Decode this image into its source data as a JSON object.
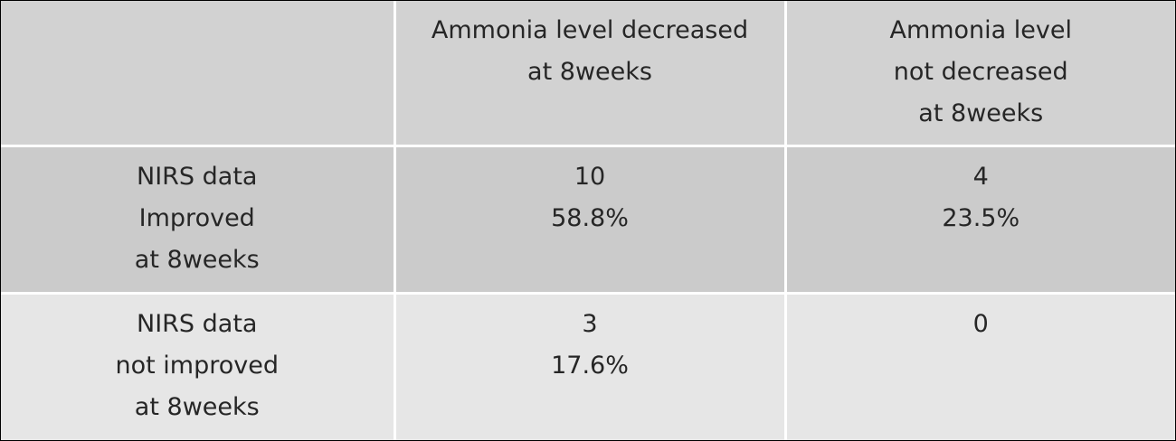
{
  "table": {
    "columns": [
      {
        "lines": [
          "Ammonia level decreased",
          "at 8weeks"
        ]
      },
      {
        "lines": [
          "Ammonia level",
          "not decreased",
          "at 8weeks"
        ]
      }
    ],
    "rows": [
      {
        "label": [
          "NIRS data",
          "Improved",
          "at 8weeks"
        ],
        "cells": [
          {
            "count": 10,
            "percent": "58.8%"
          },
          {
            "count": 4,
            "percent": "23.5%"
          }
        ]
      },
      {
        "label": [
          "NIRS data",
          "not improved",
          "at 8weeks"
        ],
        "cells": [
          {
            "count": 3,
            "percent": "17.6%"
          },
          {
            "count": 0
          }
        ]
      }
    ]
  }
}
